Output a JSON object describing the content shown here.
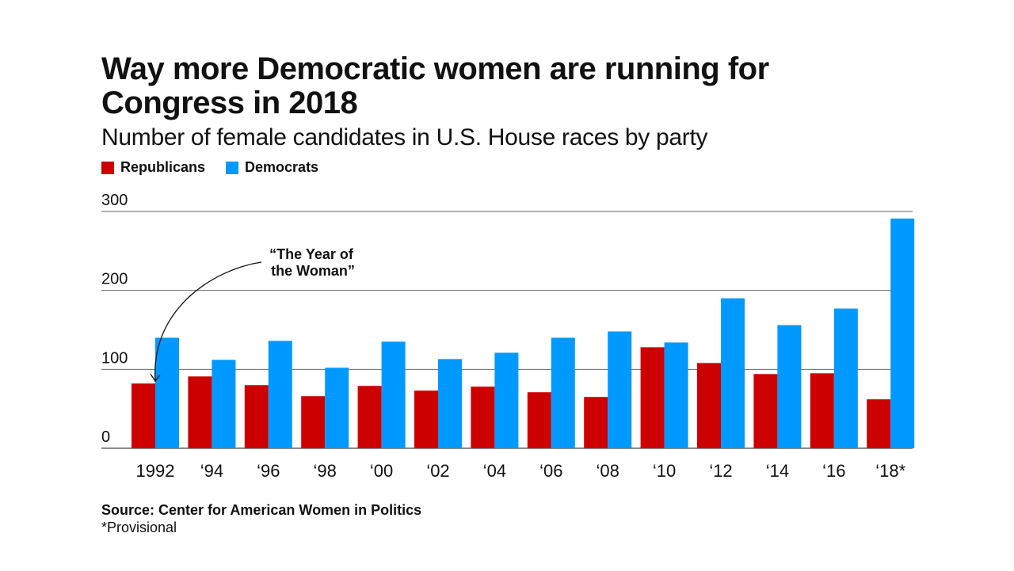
{
  "chart_data": {
    "type": "bar",
    "title": "Way more Democratic women are running for Congress in 2018",
    "subtitle": "Number of female candidates in U.S. House races by party",
    "categories": [
      "1992",
      "‘94",
      "‘96",
      "‘98",
      "‘00",
      "‘02",
      "‘04",
      "‘06",
      "‘08",
      "‘10",
      "‘12",
      "‘14",
      "‘16",
      "‘18*"
    ],
    "series": [
      {
        "name": "Republicans",
        "color": "#cc0000",
        "values": [
          82,
          91,
          80,
          66,
          79,
          73,
          78,
          71,
          65,
          128,
          108,
          94,
          95,
          62
        ]
      },
      {
        "name": "Democrats",
        "color": "#0099ff",
        "values": [
          140,
          112,
          136,
          102,
          135,
          113,
          121,
          140,
          148,
          134,
          190,
          156,
          177,
          291
        ]
      }
    ],
    "ylim": [
      0,
      300
    ],
    "yticks": [
      0,
      100,
      200,
      300
    ],
    "xlabel": "",
    "ylabel": "",
    "grid": true,
    "legend_position": "top-left",
    "annotation": {
      "text": [
        "“The Year of",
        "the Woman”"
      ],
      "target_category": "1992"
    }
  },
  "source": "Source: Center for American Women in Politics",
  "footnote": "*Provisional"
}
